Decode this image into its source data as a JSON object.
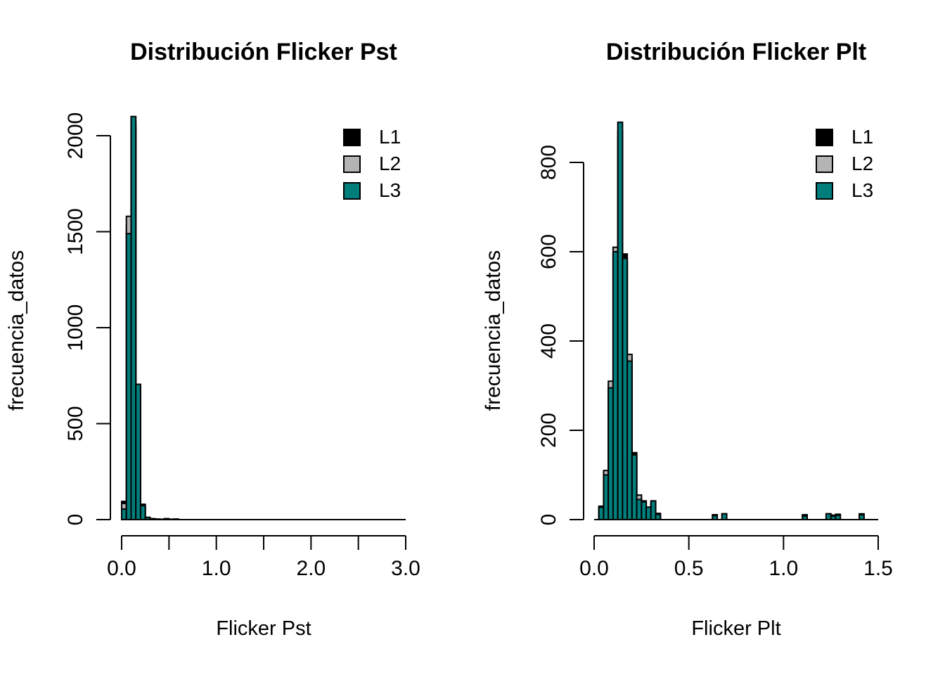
{
  "figure": {
    "background": "#ffffff",
    "axis_color": "#000000"
  },
  "colors": {
    "L1": "#000000",
    "L2": "#b4b4b4",
    "L3": "#007e7c",
    "bar_border": "#000000"
  },
  "legend": {
    "items": [
      {
        "label": "L1",
        "color": "#000000"
      },
      {
        "label": "L2",
        "color": "#b4b4b4"
      },
      {
        "label": "L3",
        "color": "#007e7c"
      }
    ]
  },
  "chart_data": [
    {
      "type": "bar",
      "subtype": "overlaid-histograms",
      "title": "Distribución Flicker Pst",
      "xlabel": "Flicker Pst",
      "ylabel": "frecuencia_datos",
      "xlim": [
        0.0,
        3.0
      ],
      "ylim": [
        0,
        2000
      ],
      "grid": false,
      "legend_position": "top-right",
      "x_ticks": [
        {
          "v": 0.0,
          "label": "0.0"
        },
        {
          "v": 0.5
        },
        {
          "v": 1.0,
          "label": "1.0"
        },
        {
          "v": 1.5
        },
        {
          "v": 2.0,
          "label": "2.0"
        },
        {
          "v": 2.5
        },
        {
          "v": 3.0,
          "label": "3.0"
        }
      ],
      "y_ticks": [
        {
          "v": 0,
          "label": "0"
        },
        {
          "v": 500,
          "label": "500"
        },
        {
          "v": 1000,
          "label": "1000"
        },
        {
          "v": 1500,
          "label": "1500"
        },
        {
          "v": 2000,
          "label": "2000"
        }
      ],
      "bin_width": 0.05,
      "bins": [
        0.0,
        0.05,
        0.1,
        0.15,
        0.2,
        0.25,
        0.3,
        0.35,
        0.4,
        0.45,
        0.5,
        0.55
      ],
      "series": [
        {
          "name": "L1",
          "color_ref": "L1",
          "values": [
            95,
            1530,
            2040,
            680,
            80,
            10,
            5,
            3,
            2,
            5,
            2,
            3
          ]
        },
        {
          "name": "L2",
          "color_ref": "L2",
          "values": [
            84,
            1580,
            2070,
            690,
            65,
            8,
            3,
            2,
            1,
            3,
            1,
            2
          ]
        },
        {
          "name": "L3",
          "color_ref": "L3",
          "values": [
            55,
            1490,
            2100,
            705,
            73,
            12,
            4,
            2,
            1,
            4,
            1,
            2
          ]
        }
      ]
    },
    {
      "type": "bar",
      "subtype": "overlaid-histograms",
      "title": "Distribución Flicker Plt",
      "xlabel": "Flicker Plt",
      "ylabel": "frecuencia_datos",
      "xlim": [
        0.0,
        1.5
      ],
      "ylim": [
        0,
        800
      ],
      "grid": false,
      "legend_position": "top-right",
      "x_ticks": [
        {
          "v": 0.0,
          "label": "0.0"
        },
        {
          "v": 0.5,
          "label": "0.5"
        },
        {
          "v": 1.0,
          "label": "1.0"
        },
        {
          "v": 1.5,
          "label": "1.5"
        }
      ],
      "y_ticks": [
        {
          "v": 0,
          "label": "0"
        },
        {
          "v": 200,
          "label": "200"
        },
        {
          "v": 400,
          "label": "400"
        },
        {
          "v": 600,
          "label": "600"
        },
        {
          "v": 800,
          "label": "800"
        }
      ],
      "bin_width": 0.025,
      "bins": [
        0.025,
        0.05,
        0.075,
        0.1,
        0.125,
        0.15,
        0.175,
        0.2,
        0.225,
        0.25,
        0.275,
        0.3,
        0.325,
        0.625,
        0.675,
        1.1,
        1.225,
        1.25,
        1.275,
        1.4
      ],
      "series": [
        {
          "name": "L1",
          "color_ref": "L1",
          "values": [
            30,
            105,
            300,
            595,
            870,
            595,
            360,
            150,
            50,
            42,
            25,
            40,
            14,
            11,
            13,
            11,
            13,
            10,
            12,
            13
          ]
        },
        {
          "name": "L2",
          "color_ref": "L2",
          "values": [
            25,
            110,
            310,
            610,
            855,
            575,
            370,
            140,
            55,
            38,
            22,
            35,
            10,
            0,
            0,
            0,
            0,
            0,
            0,
            0
          ]
        },
        {
          "name": "L3",
          "color_ref": "L3",
          "values": [
            28,
            100,
            295,
            600,
            890,
            585,
            355,
            145,
            45,
            40,
            28,
            42,
            12,
            9,
            13,
            8,
            13,
            8,
            10,
            11
          ]
        }
      ]
    }
  ]
}
